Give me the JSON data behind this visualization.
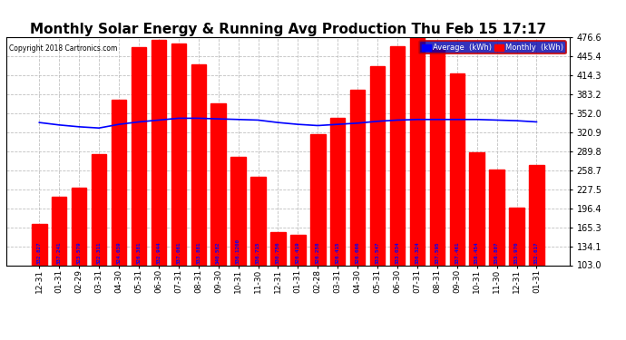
{
  "title": "Monthly Solar Energy & Running Avg Production Thu Feb 15 17:17",
  "copyright": "Copyright 2018 Cartronics.com",
  "categories": [
    "12-31",
    "01-31",
    "02-29",
    "03-31",
    "04-30",
    "05-31",
    "06-30",
    "07-31",
    "08-31",
    "09-30",
    "10-31",
    "11-30",
    "12-31",
    "01-31",
    "02-28",
    "03-31",
    "04-30",
    "05-31",
    "06-30",
    "07-31",
    "08-31",
    "09-30",
    "10-31",
    "11-30",
    "12-31",
    "01-31"
  ],
  "bar_values": [
    170,
    215,
    230,
    285,
    375,
    460,
    472,
    467,
    432,
    368,
    280,
    248,
    158,
    153,
    318,
    345,
    390,
    430,
    462,
    482,
    457,
    418,
    288,
    260,
    198,
    268
  ],
  "bar_labels": [
    "332.827",
    "337.241",
    "323.579",
    "322.311",
    "324.039",
    "326.381",
    "332.944",
    "337.061",
    "333.881",
    "340.582",
    "336.1200",
    "336.715",
    "330.756",
    "326.419",
    "326.258",
    "326.415",
    "326.666",
    "333.547",
    "333.034",
    "336.324",
    "337.595",
    "337.461",
    "338.454",
    "336.807",
    "333.970",
    "332.617"
  ],
  "avg_values": [
    337,
    333,
    330,
    328,
    334,
    338,
    341,
    344,
    344,
    343,
    342,
    341,
    337,
    334,
    332,
    334,
    336,
    339,
    341,
    342,
    342,
    342,
    342,
    341,
    340,
    338
  ],
  "bar_color": "#ff0000",
  "avg_color": "#0000ff",
  "background_color": "#ffffff",
  "plot_bg_color": "#ffffff",
  "grid_color": "#b0b0b0",
  "title_fontsize": 11,
  "ylabel_right": [
    "476.6",
    "445.4",
    "414.3",
    "383.2",
    "352.0",
    "320.9",
    "289.8",
    "258.7",
    "227.5",
    "196.4",
    "165.3",
    "134.1",
    "103.0"
  ],
  "ymin": 103.0,
  "ymax": 476.6,
  "legend_avg_label": "Average  (kWh)",
  "legend_monthly_label": "Monthly  (kWh)"
}
